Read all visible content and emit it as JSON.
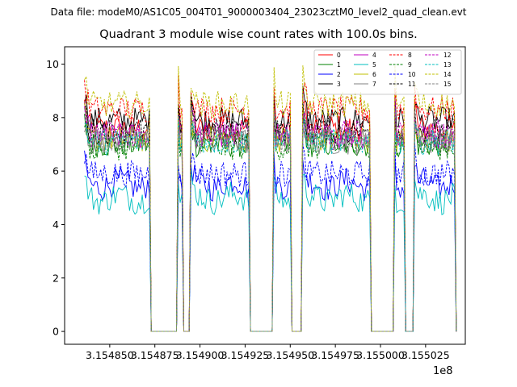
{
  "suptitle": "Data file: modeM0/AS1C05_004T01_9000003404_23023cztM0_level2_quad_clean.evt",
  "chart_data": {
    "type": "line",
    "title": "Quadrant 3 module wise count rates with 100.0s bins.",
    "xlabel": "",
    "ylabel": "",
    "x_offset_label": "1e8",
    "xlim": [
      3.154825,
      3.155047
    ],
    "ylim": [
      -0.48,
      10.65
    ],
    "x_ticks": [
      3.15485,
      3.154875,
      3.1549,
      3.154925,
      3.15495,
      3.154975,
      3.155,
      3.155025
    ],
    "x_tick_labels": [
      "3.154850",
      "3.154875",
      "3.154900",
      "3.154925",
      "3.154950",
      "3.154975",
      "3.155000",
      "3.155025"
    ],
    "y_ticks": [
      0,
      2,
      4,
      6,
      8,
      10
    ],
    "y_tick_labels": [
      "0",
      "2",
      "4",
      "6",
      "8",
      "10"
    ],
    "legend_position": "top-right",
    "gti_segments": [
      [
        3.154836,
        3.154873
      ],
      [
        3.154888,
        3.154891
      ],
      [
        3.154895,
        3.154928
      ],
      [
        3.154941,
        3.154951
      ],
      [
        3.154957,
        3.154995
      ],
      [
        3.155008,
        3.155014
      ],
      [
        3.155019,
        3.155042
      ]
    ],
    "series": [
      {
        "name": "0",
        "color": "#ff0000",
        "dash": false,
        "level": 7.6
      },
      {
        "name": "1",
        "color": "#008000",
        "dash": false,
        "level": 7.0
      },
      {
        "name": "2",
        "color": "#0000ff",
        "dash": false,
        "level": 5.5
      },
      {
        "name": "3",
        "color": "#000000",
        "dash": false,
        "level": 7.9
      },
      {
        "name": "4",
        "color": "#bf00bf",
        "dash": false,
        "level": 7.3
      },
      {
        "name": "5",
        "color": "#00bfbf",
        "dash": false,
        "level": 5.0
      },
      {
        "name": "6",
        "color": "#bfbf00",
        "dash": false,
        "level": 7.2
      },
      {
        "name": "7",
        "color": "#808080",
        "dash": false,
        "level": 7.1
      },
      {
        "name": "8",
        "color": "#ff0000",
        "dash": true,
        "level": 8.3
      },
      {
        "name": "9",
        "color": "#008000",
        "dash": true,
        "level": 6.9
      },
      {
        "name": "10",
        "color": "#0000ff",
        "dash": true,
        "level": 5.9
      },
      {
        "name": "11",
        "color": "#000000",
        "dash": true,
        "level": 7.5
      },
      {
        "name": "12",
        "color": "#bf00bf",
        "dash": true,
        "level": 7.4
      },
      {
        "name": "13",
        "color": "#00bfbf",
        "dash": true,
        "level": 7.1
      },
      {
        "name": "14",
        "color": "#bfbf00",
        "dash": true,
        "level": 8.5
      },
      {
        "name": "15",
        "color": "#808080",
        "dash": true,
        "level": 7.2
      }
    ]
  }
}
